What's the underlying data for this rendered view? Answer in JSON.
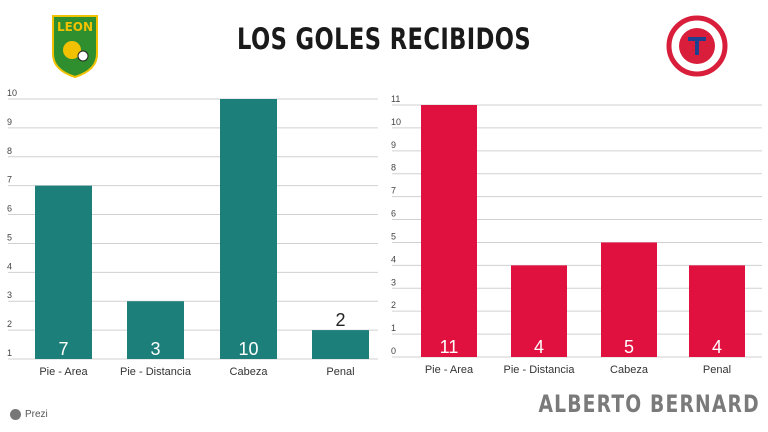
{
  "title": "LOS GOLES RECIBIDOS",
  "author": "ALBERTO BERNARD",
  "footer": {
    "brand": "Prezi"
  },
  "logos": {
    "left": {
      "text": "LEON",
      "color": "#2f8f2f"
    },
    "right": {
      "color": "#d81e3a"
    }
  },
  "chart_data": [
    {
      "type": "bar",
      "categories": [
        "Pie - Area",
        "Pie - Distancia",
        "Cabeza",
        "Penal"
      ],
      "values": [
        7,
        3,
        10,
        2
      ],
      "yticks": [
        1,
        2,
        3,
        4,
        5,
        6,
        7,
        8,
        9,
        10
      ],
      "ylim": [
        1,
        10
      ],
      "grid": true,
      "color": "#1c7f7a",
      "labels_inside": [
        "7",
        "3",
        "10"
      ],
      "label_above": "2"
    },
    {
      "type": "bar",
      "categories": [
        "Pie - Area",
        "Pie - Distancia",
        "Cabeza",
        "Penal"
      ],
      "values": [
        11,
        4,
        5,
        4
      ],
      "yticks": [
        0,
        1,
        2,
        3,
        4,
        5,
        6,
        7,
        8,
        9,
        10,
        11
      ],
      "ylim": [
        0,
        11
      ],
      "grid": true,
      "color": "#e0103f",
      "labels_inside": [
        "11",
        "4",
        "5",
        "4"
      ]
    }
  ]
}
